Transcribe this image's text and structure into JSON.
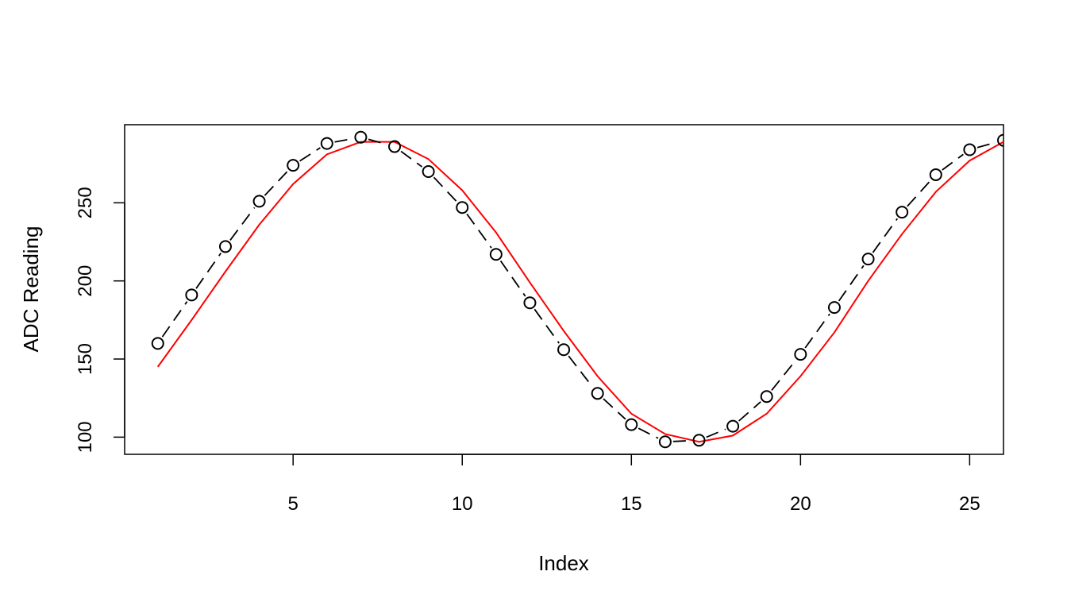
{
  "chart_data": {
    "type": "line",
    "title": "",
    "xlabel": "Index",
    "ylabel": "ADC Reading",
    "xlim": [
      0.02,
      26
    ],
    "ylim": [
      89,
      300
    ],
    "x_ticks": [
      5,
      10,
      15,
      20,
      25
    ],
    "y_ticks": [
      100,
      150,
      200,
      250
    ],
    "grid": false,
    "legend": "none",
    "x": [
      1,
      2,
      3,
      4,
      5,
      6,
      7,
      8,
      9,
      10,
      11,
      12,
      13,
      14,
      15,
      16,
      17,
      18,
      19,
      20,
      21,
      22,
      23,
      24,
      25,
      26
    ],
    "series": [
      {
        "style": "dashed-line-open-circles",
        "color": "#000000",
        "values": [
          160,
          191,
          222,
          251,
          274,
          288,
          292,
          286,
          270,
          247,
          217,
          186,
          156,
          128,
          108,
          97,
          98,
          107,
          126,
          153,
          183,
          214,
          244,
          268,
          284,
          290
        ]
      },
      {
        "style": "solid-line",
        "color": "#ff0000",
        "values": [
          145,
          175,
          206,
          236,
          262,
          281,
          289,
          289,
          278,
          258,
          231,
          199,
          168,
          139,
          115,
          102,
          97,
          101,
          115,
          139,
          167,
          200,
          230,
          257,
          277,
          289
        ]
      }
    ]
  }
}
